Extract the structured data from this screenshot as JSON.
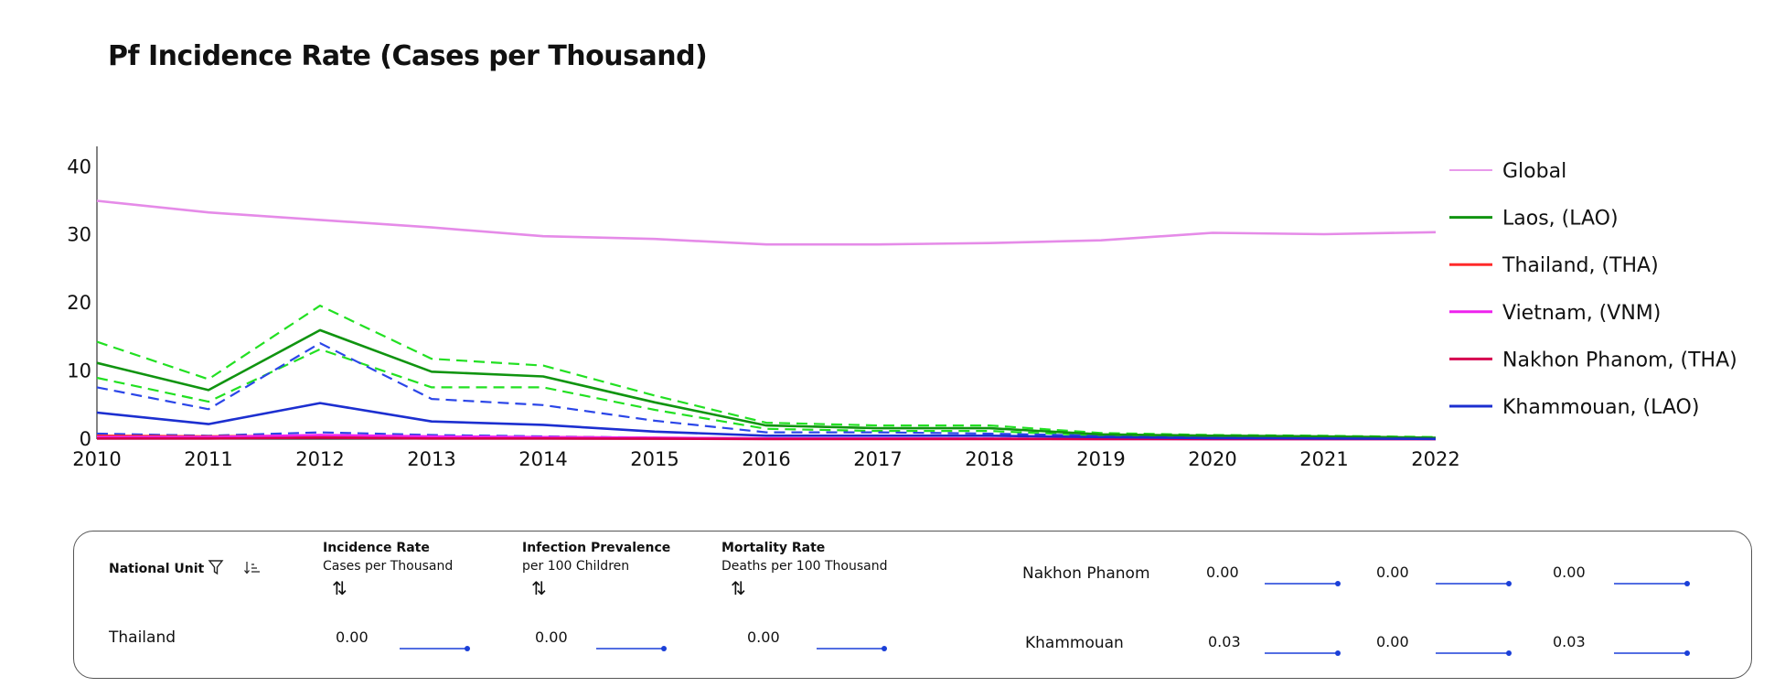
{
  "title": "Pf Incidence Rate (Cases per Thousand)",
  "chart_data": {
    "type": "line",
    "title": "Pf Incidence Rate (Cases per Thousand)",
    "x": [
      "2010",
      "2011",
      "2012",
      "2013",
      "2014",
      "2015",
      "2016",
      "2017",
      "2018",
      "2019",
      "2020",
      "2021",
      "2022"
    ],
    "ylim": [
      0,
      43
    ],
    "yticks": [
      0,
      10,
      20,
      30,
      40
    ],
    "grid": false,
    "legend_position": "right",
    "series": [
      {
        "name": "Global",
        "color": "#e58be8",
        "style": "solid",
        "values": [
          35,
          33.3,
          32.2,
          31.1,
          29.8,
          29.4,
          28.6,
          28.6,
          28.8,
          29.2,
          30.3,
          30.1,
          30.4
        ]
      },
      {
        "name": "Laos, (LAO)",
        "color": "#109410",
        "style": "solid",
        "values": [
          11.2,
          7.2,
          16,
          9.9,
          9.2,
          5.4,
          2,
          1.6,
          1.6,
          0.7,
          0.5,
          0.4,
          0.2
        ]
      },
      {
        "name": "Thailand, (THA)",
        "color": "#ff2a2a",
        "style": "solid",
        "values": [
          0.5,
          0.4,
          0.5,
          0.3,
          0.3,
          0.2,
          0.1,
          0.1,
          0.05,
          0.03,
          0.02,
          0.01,
          0.0
        ]
      },
      {
        "name": "Vietnam, (VNM)",
        "color": "#ee22ee",
        "style": "solid",
        "values": [
          0.3,
          0.3,
          0.6,
          0.4,
          0.3,
          0.2,
          0.1,
          0.1,
          0.05,
          0.03,
          0.02,
          0.01,
          0.0
        ]
      },
      {
        "name": "Nakhon Phanom, (THA)",
        "color": "#d6004f",
        "style": "solid",
        "values": [
          0.1,
          0.1,
          0.2,
          0.1,
          0.1,
          0.05,
          0.02,
          0.02,
          0.01,
          0.01,
          0.0,
          0.0,
          0.0
        ]
      },
      {
        "name": "Khammouan, (LAO)",
        "color": "#1c2fd0",
        "style": "solid",
        "values": [
          3.9,
          2.2,
          5.3,
          2.6,
          2.1,
          1.1,
          0.5,
          0.5,
          0.5,
          0.3,
          0.15,
          0.1,
          0.03
        ]
      },
      {
        "name": "",
        "color": "#22e022",
        "style": "dashed",
        "values": [
          14.3,
          8.8,
          19.6,
          11.8,
          10.8,
          6.4,
          2.4,
          2.0,
          2.0,
          0.9,
          0.6,
          0.5,
          0.3
        ]
      },
      {
        "name": "",
        "color": "#22e022",
        "style": "dashed",
        "values": [
          9,
          5.5,
          13.2,
          7.6,
          7.6,
          4.3,
          1.5,
          1.2,
          1.2,
          0.5,
          0.4,
          0.3,
          0.1
        ]
      },
      {
        "name": "",
        "color": "#2b46e8",
        "style": "dashed",
        "values": [
          7.6,
          4.4,
          14.1,
          5.9,
          5.0,
          2.7,
          1.0,
          1.0,
          0.8,
          0.5,
          0.3,
          0.2,
          0.1
        ]
      },
      {
        "name": "",
        "color": "#2b46e8",
        "style": "dashed",
        "values": [
          0.8,
          0.5,
          1.0,
          0.6,
          0.4,
          0.2,
          0.1,
          0.1,
          0.1,
          0.05,
          0.03,
          0.02,
          0.01
        ]
      }
    ]
  },
  "table": {
    "header_unit": "National Unit",
    "filter_icon": "filter-icon",
    "sort_icon": "sort-lines-icon",
    "sort_toggle_icon": "sort-arrows-icon",
    "columns": [
      {
        "title": "Incidence Rate",
        "subtitle": "Cases per Thousand"
      },
      {
        "title": "Infection Prevalence",
        "subtitle": "per 100 Children"
      },
      {
        "title": "Mortality Rate",
        "subtitle": "Deaths per 100 Thousand"
      }
    ],
    "rows": [
      {
        "label": "Thailand",
        "values": [
          "0.00",
          "0.00",
          "0.00"
        ]
      },
      {
        "label": "Nakhon Phanom",
        "values": [
          "0.00",
          "0.00",
          "0.00"
        ]
      },
      {
        "label": "Khammouan",
        "values": [
          "0.03",
          "0.00",
          "0.03"
        ]
      }
    ],
    "sparkline_color": "#1a3fd8"
  }
}
